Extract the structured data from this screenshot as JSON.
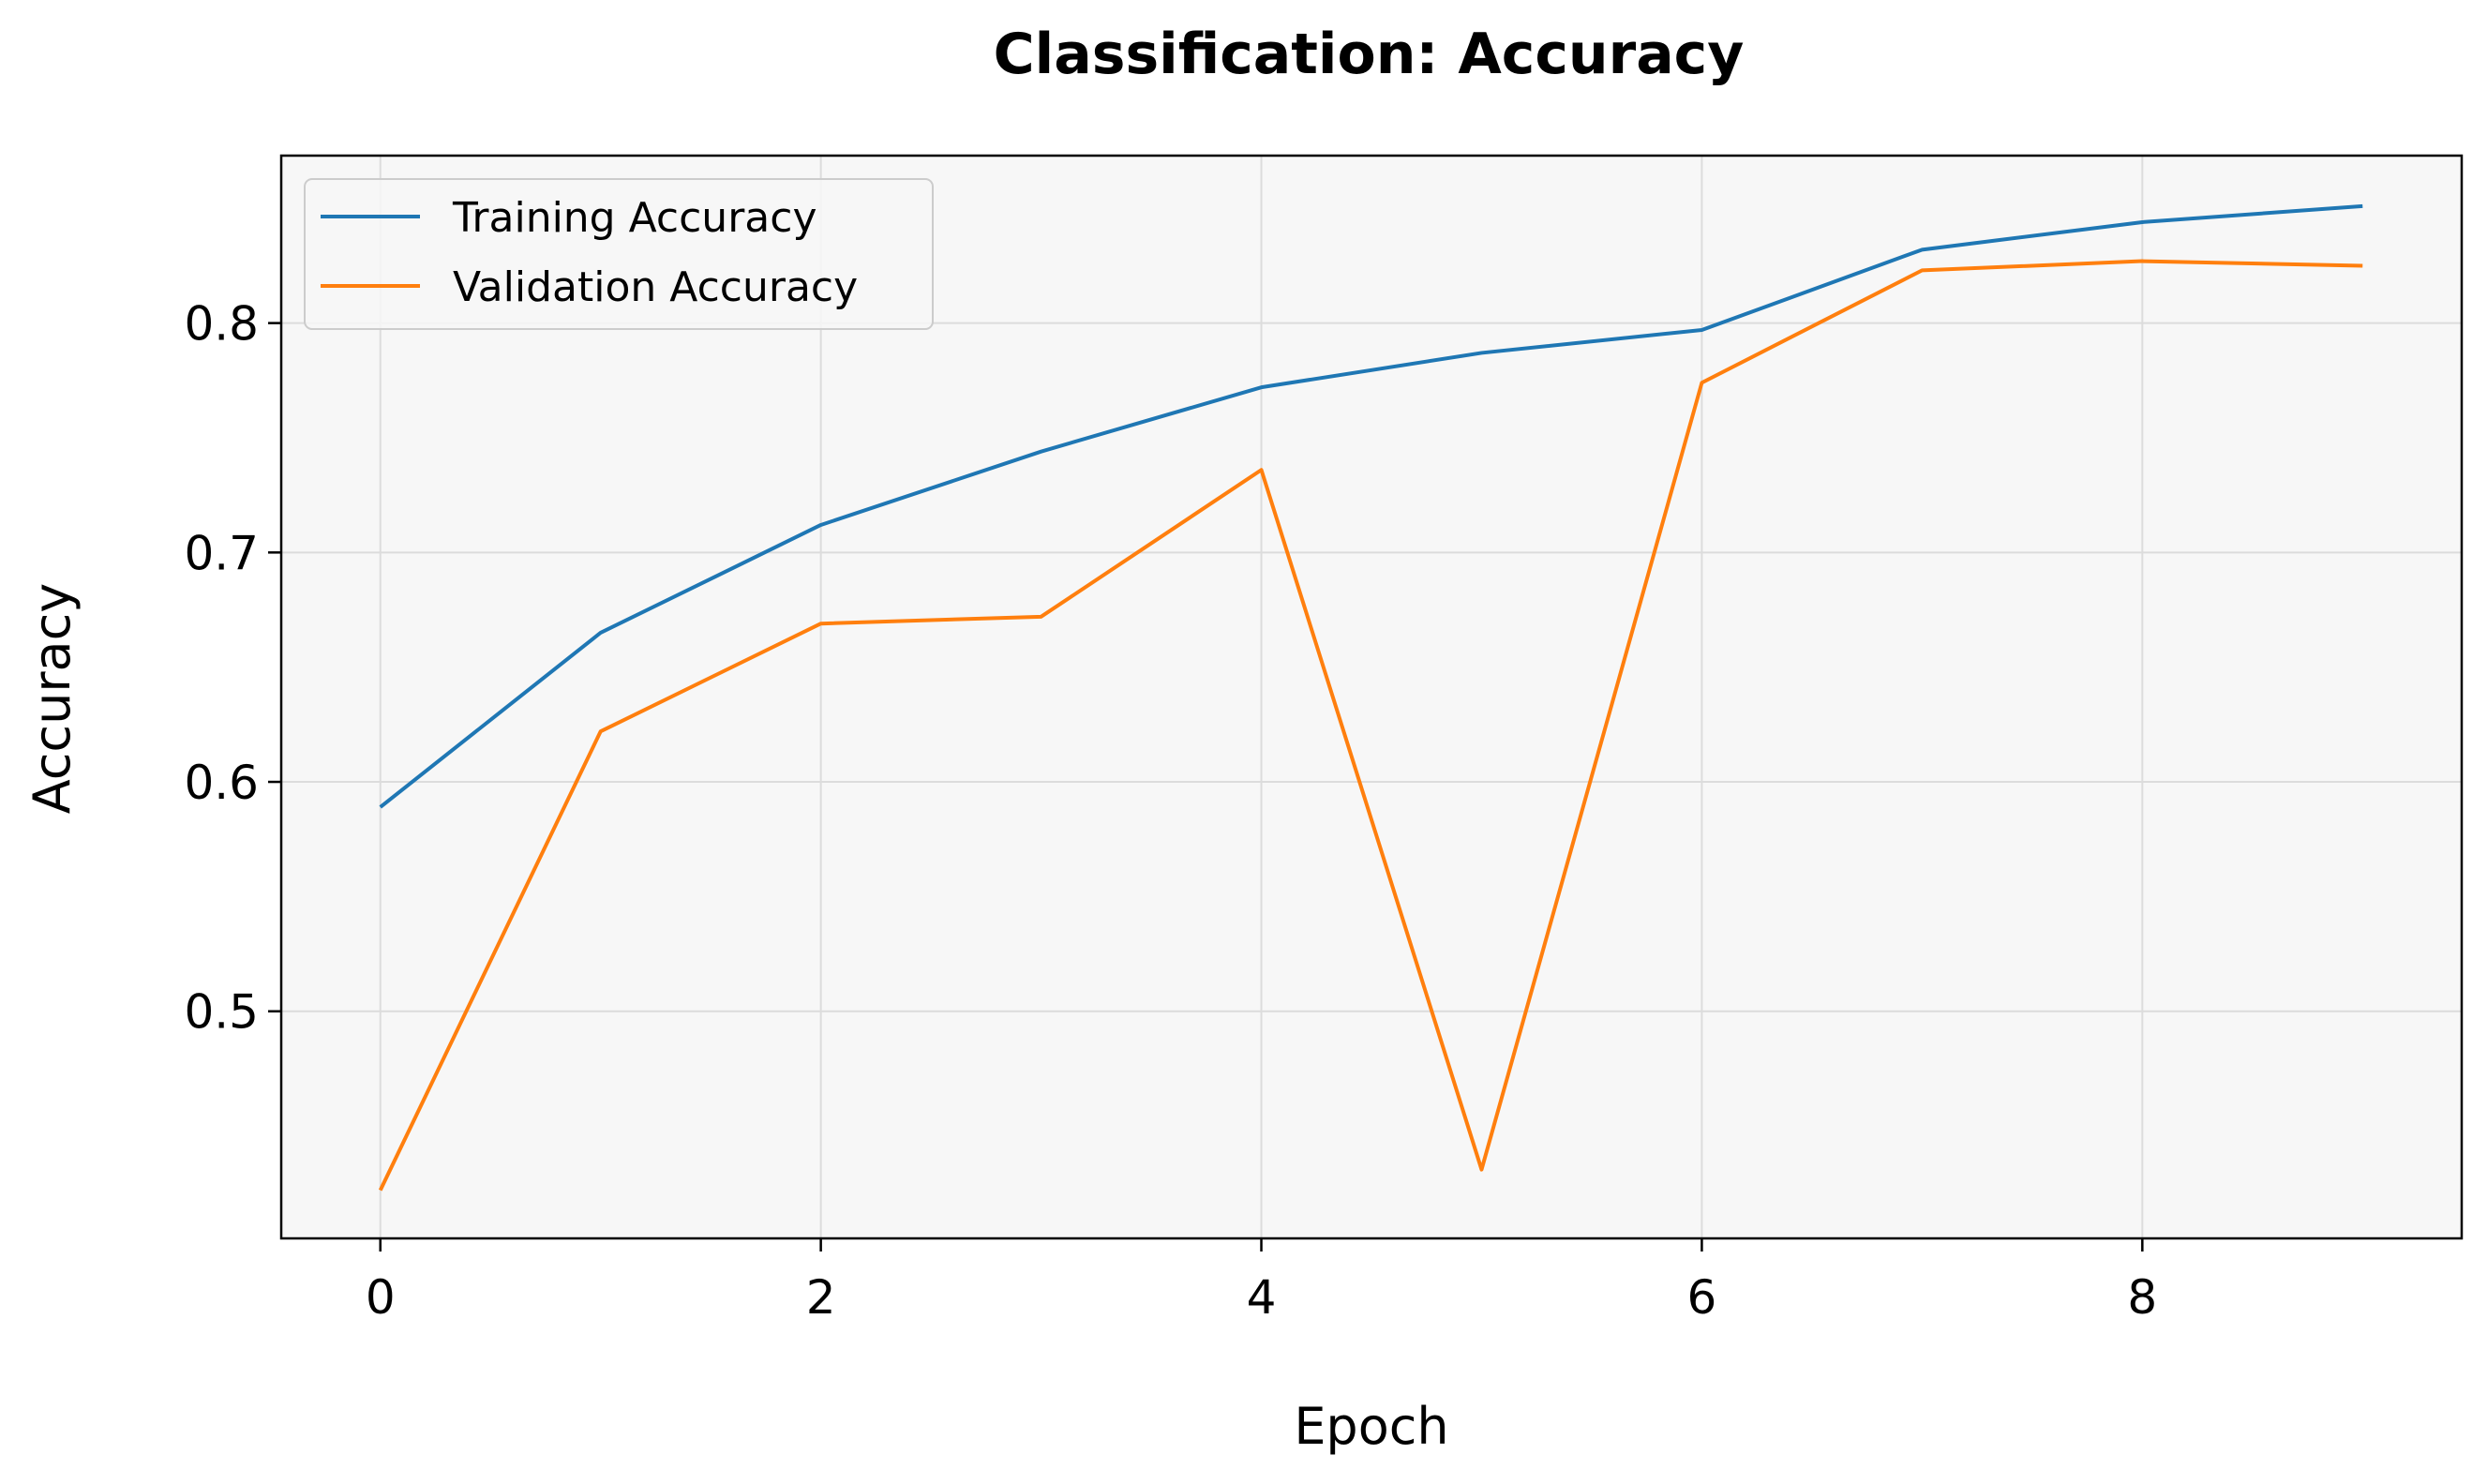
{
  "chart_data": {
    "type": "line",
    "title": "Classification: Accuracy",
    "xlabel": "Epoch",
    "ylabel": "Accuracy",
    "x": [
      0,
      1,
      2,
      3,
      4,
      5,
      6,
      7,
      8,
      9
    ],
    "xlim": [
      -0.45,
      9.45
    ],
    "ylim": [
      0.401,
      0.873
    ],
    "xticks": [
      0,
      2,
      4,
      6,
      8
    ],
    "yticks": [
      0.5,
      0.6,
      0.7,
      0.8
    ],
    "xtick_labels": [
      "0",
      "2",
      "4",
      "6",
      "8"
    ],
    "ytick_labels": [
      "0.5",
      "0.6",
      "0.7",
      "0.8"
    ],
    "grid": true,
    "legend_position": "top-left",
    "series": [
      {
        "name": "Training Accuracy",
        "color": "#1f77b4",
        "values": [
          0.589,
          0.665,
          0.712,
          0.744,
          0.772,
          0.787,
          0.797,
          0.832,
          0.844,
          0.851
        ]
      },
      {
        "name": "Validation Accuracy",
        "color": "#ff7f0e",
        "values": [
          0.422,
          0.622,
          0.669,
          0.672,
          0.736,
          0.431,
          0.774,
          0.823,
          0.827,
          0.825
        ]
      }
    ],
    "colors": {
      "plot_background": "#f7f7f7",
      "grid": "#dcdcdc",
      "axes": "#000000"
    }
  }
}
